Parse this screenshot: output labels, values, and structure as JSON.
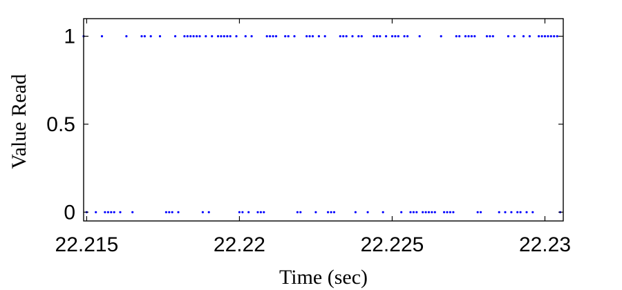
{
  "chart_data": {
    "type": "scatter",
    "xlabel": "Time (sec)",
    "ylabel": "Value Read",
    "xlim": [
      22.2149,
      22.2306
    ],
    "ylim": [
      -0.05,
      1.1
    ],
    "xticks": [
      22.215,
      22.22,
      22.225,
      22.23
    ],
    "xtick_labels": [
      "22.215",
      "22.22",
      "22.225",
      "22.23"
    ],
    "yticks": [
      0,
      0.5,
      1
    ],
    "ytick_labels": [
      "0",
      "0.5",
      "1"
    ],
    "grid": false,
    "marker_color": "#0000ff",
    "series": [
      {
        "x": [
          22.2149,
          22.215,
          22.2153,
          22.2155,
          22.2156,
          22.2157,
          22.2158,
          22.2159,
          22.2161,
          22.2163,
          22.2165,
          22.2168,
          22.2169,
          22.2171,
          22.2174,
          22.2176,
          22.2177,
          22.2178,
          22.2179,
          22.218,
          22.2182,
          22.2183,
          22.2184,
          22.2185,
          22.2186,
          22.2187,
          22.2188,
          22.2189,
          22.219,
          22.2191,
          22.2193,
          22.2194,
          22.2195,
          22.2196,
          22.2197,
          22.2199,
          22.22,
          22.2201,
          22.2202,
          22.2203,
          22.2204,
          22.2206,
          22.2207,
          22.2208,
          22.2209,
          22.221,
          22.2211,
          22.2212,
          22.2215,
          22.2216,
          22.2218,
          22.2219,
          22.222,
          22.2222,
          22.2223,
          22.2224,
          22.2225,
          22.2226,
          22.2228,
          22.2229,
          22.223,
          22.2231,
          22.2233,
          22.2234,
          22.2235,
          22.2237,
          22.2238,
          22.2239,
          22.224,
          22.2242,
          22.2244,
          22.2245,
          22.2246,
          22.2247,
          22.2248,
          22.225,
          22.2251,
          22.2252,
          22.2253,
          22.2254,
          22.2255,
          22.2256,
          22.2257,
          22.2258,
          22.2259,
          22.226,
          22.2261,
          22.2262,
          22.2263,
          22.2264,
          22.2266,
          22.2267,
          22.2268,
          22.2269,
          22.227,
          22.2271,
          22.2272,
          22.2274,
          22.2275,
          22.2276,
          22.2277,
          22.2278,
          22.2279,
          22.2281,
          22.2282,
          22.2283,
          22.2285,
          22.2287,
          22.2288,
          22.2289,
          22.229,
          22.2291,
          22.2292,
          22.2293,
          22.2294,
          22.2295,
          22.2296,
          22.2298,
          22.2299,
          22.23,
          22.2301,
          22.2302,
          22.2303,
          22.2304,
          22.2305
        ],
        "y": [
          1,
          0,
          0,
          1,
          0,
          0,
          0,
          0,
          0,
          1,
          0,
          1,
          1,
          1,
          1,
          0,
          0,
          0,
          1,
          0,
          1,
          1,
          1,
          1,
          1,
          1,
          0,
          1,
          0,
          1,
          1,
          1,
          1,
          1,
          1,
          1,
          0,
          0,
          1,
          0,
          1,
          0,
          0,
          0,
          1,
          1,
          1,
          1,
          1,
          1,
          1,
          0,
          0,
          1,
          1,
          1,
          0,
          1,
          1,
          0,
          0,
          0,
          1,
          1,
          1,
          1,
          0,
          1,
          1,
          0,
          1,
          1,
          1,
          0,
          1,
          1,
          1,
          1,
          0,
          1,
          1,
          0,
          0,
          0,
          1,
          0,
          0,
          0,
          0,
          0,
          1,
          0,
          0,
          0,
          0,
          1,
          1,
          1,
          1,
          1,
          1,
          0,
          0,
          1,
          1,
          1,
          0,
          0,
          1,
          0,
          1,
          0,
          0,
          1,
          0,
          1,
          0,
          1,
          1,
          1,
          1,
          1,
          1,
          1,
          0
        ]
      }
    ]
  }
}
